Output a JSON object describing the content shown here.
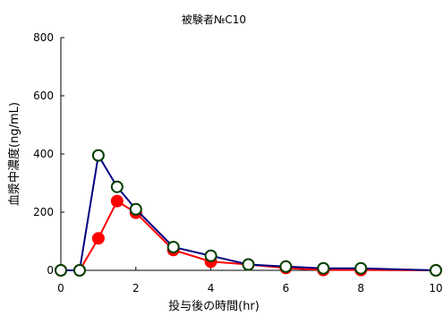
{
  "chart_data": {
    "type": "line",
    "title": "被験者№C10",
    "xlabel": "投与後の時間(hr)",
    "ylabel": "血漿中濃度(ng/mL)",
    "xlim": [
      0,
      10
    ],
    "ylim": [
      0,
      800
    ],
    "xticks": [
      0,
      2,
      4,
      6,
      8,
      10
    ],
    "yticks": [
      0,
      200,
      400,
      600,
      800
    ],
    "grid": false,
    "legend": "none",
    "series": [
      {
        "color": "#000080",
        "marker": "open-circle",
        "marker_fill": "#ffffff",
        "marker_stroke": "#004000",
        "x": [
          0,
          0.5,
          1,
          1.5,
          2,
          3,
          4,
          5,
          6,
          7,
          8,
          10
        ],
        "y": [
          0,
          0,
          395,
          287,
          210,
          80,
          50,
          20,
          13,
          7,
          7,
          0
        ]
      },
      {
        "color": "#ff0000",
        "marker": "filled-circle",
        "marker_fill": "#ff0000",
        "marker_stroke": "#ff0000",
        "x": [
          0,
          0.5,
          1,
          1.5,
          2,
          3,
          4,
          5,
          6,
          7,
          8,
          10
        ],
        "y": [
          0,
          0,
          110,
          238,
          198,
          70,
          30,
          20,
          8,
          1,
          1,
          0
        ]
      }
    ]
  }
}
